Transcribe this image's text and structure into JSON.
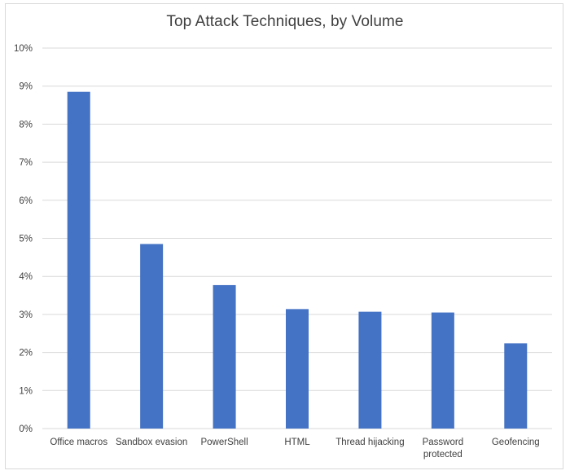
{
  "chart_data": {
    "type": "bar",
    "title": "Top Attack Techniques, by Volume",
    "xlabel": "",
    "ylabel": "",
    "categories": [
      [
        "Office macros"
      ],
      [
        "Sandbox evasion"
      ],
      [
        "PowerShell"
      ],
      [
        "HTML"
      ],
      [
        "Thread hijacking"
      ],
      [
        "Password",
        "protected"
      ],
      [
        "Geofencing"
      ]
    ],
    "values": [
      8.85,
      4.85,
      3.77,
      3.14,
      3.07,
      3.05,
      2.24
    ],
    "ylim": [
      0,
      10
    ],
    "yticks": [
      0,
      1,
      2,
      3,
      4,
      5,
      6,
      7,
      8,
      9,
      10
    ],
    "ytick_labels": [
      "0%",
      "1%",
      "2%",
      "3%",
      "4%",
      "5%",
      "6%",
      "7%",
      "8%",
      "9%",
      "10%"
    ],
    "grid": true,
    "legend": "none",
    "colors": {
      "bar": "#4472C4",
      "grid": "#d9d9d9",
      "text": "#404040"
    }
  }
}
